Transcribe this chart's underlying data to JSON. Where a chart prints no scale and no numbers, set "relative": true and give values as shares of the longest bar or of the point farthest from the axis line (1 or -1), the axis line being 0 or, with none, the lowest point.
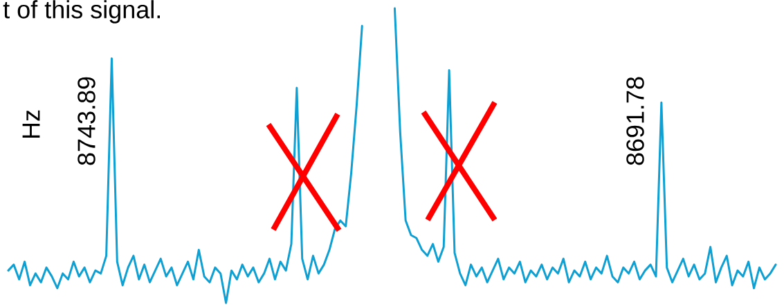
{
  "chart_data": {
    "type": "line",
    "relative": true,
    "line_style": "solid",
    "categories": [
      null,
      null,
      null,
      null,
      null,
      null,
      null,
      null,
      null,
      null,
      null,
      null,
      null,
      null,
      null,
      null,
      null,
      null,
      null,
      null,
      null,
      null,
      null,
      null,
      null,
      null,
      null,
      null,
      null,
      null,
      null,
      null,
      null,
      null,
      null,
      null,
      null,
      null,
      null,
      null,
      null,
      null,
      null,
      null,
      null,
      null,
      null,
      null,
      null,
      null,
      null,
      null,
      null,
      null,
      null,
      null,
      null,
      null,
      null,
      null,
      null,
      null,
      null,
      null,
      null,
      null,
      null,
      null,
      null,
      null,
      null,
      null,
      null,
      null,
      null,
      null,
      null,
      null,
      null,
      null,
      null,
      null,
      null,
      null,
      null,
      null,
      null,
      null,
      null,
      null,
      null,
      null,
      null,
      null,
      null,
      null,
      null,
      null,
      null,
      null,
      null,
      null,
      null,
      null,
      null,
      null,
      null,
      null,
      null,
      null,
      null,
      null,
      null,
      null,
      null,
      null,
      null,
      null,
      null,
      null,
      null,
      null,
      null,
      null,
      null,
      null,
      null,
      null,
      null,
      null,
      null,
      null,
      null,
      null,
      null,
      null,
      null,
      null,
      null,
      null,
      null,
      null
    ],
    "series": [
      {
        "color": "#0fa0d3",
        "values": [
          0.11,
          0.13,
          0.08,
          0.14,
          0.06,
          0.1,
          0.07,
          0.12,
          0.09,
          0.05,
          0.1,
          0.08,
          0.14,
          0.09,
          0.12,
          0.07,
          0.11,
          0.1,
          0.16,
          0.83,
          0.14,
          0.06,
          0.12,
          0.16,
          0.08,
          0.13,
          0.07,
          0.11,
          0.15,
          0.09,
          0.12,
          0.06,
          0.1,
          0.14,
          0.08,
          0.18,
          0.09,
          0.07,
          0.12,
          0.1,
          0.0,
          0.11,
          0.08,
          0.13,
          0.09,
          0.12,
          0.07,
          0.1,
          0.15,
          0.08,
          0.14,
          0.11,
          0.2,
          0.73,
          0.15,
          0.08,
          0.16,
          0.1,
          0.13,
          0.18,
          0.25,
          0.28,
          0.26,
          0.44,
          0.67,
          0.94,
          null,
          null,
          null,
          null,
          null,
          null,
          null,
          null,
          null,
          null,
          null,
          null,
          null,
          null,
          null,
          null,
          null,
          null,
          null,
          null,
          null,
          null,
          null,
          null,
          null,
          null,
          null,
          null,
          null,
          null,
          null,
          null,
          null,
          null,
          null,
          null,
          null,
          null,
          null,
          null,
          null,
          null,
          null,
          null,
          null,
          null,
          null,
          null,
          null,
          null,
          null,
          null,
          null,
          null,
          null,
          null,
          null,
          null,
          null,
          null,
          null,
          null,
          null,
          null,
          null,
          null,
          null,
          null,
          null,
          null,
          null,
          null,
          null,
          null,
          null,
          null
        ]
      },
      {
        "color": "#0fa0d3",
        "values": [
          null,
          null,
          null,
          null,
          null,
          null,
          null,
          null,
          null,
          null,
          null,
          null,
          null,
          null,
          null,
          null,
          null,
          null,
          null,
          null,
          null,
          null,
          null,
          null,
          null,
          null,
          null,
          null,
          null,
          null,
          null,
          null,
          null,
          null,
          null,
          null,
          null,
          null,
          null,
          null,
          null,
          null,
          null,
          null,
          null,
          null,
          null,
          null,
          null,
          null,
          null,
          null,
          null,
          null,
          null,
          null,
          null,
          null,
          null,
          null,
          null,
          null,
          null,
          null,
          null,
          null,
          null,
          null,
          null,
          null,
          null,
          1.0,
          0.58,
          0.28,
          0.23,
          0.22,
          0.18,
          0.16,
          0.2,
          0.14,
          0.19,
          0.79,
          0.17,
          0.1,
          0.06,
          0.13,
          0.09,
          0.12,
          0.07,
          0.11,
          0.15,
          0.08,
          0.12,
          0.1,
          0.14,
          0.07,
          0.11,
          0.09,
          0.13,
          0.08,
          0.12,
          0.1,
          0.15,
          0.07,
          0.11,
          0.09,
          0.14,
          0.08,
          0.12,
          0.1,
          0.16,
          0.09,
          0.07,
          0.12,
          0.1,
          0.14,
          0.08,
          0.11,
          0.13,
          0.09,
          0.68,
          0.12,
          0.07,
          0.11,
          0.15,
          0.09,
          0.13,
          0.08,
          0.1,
          0.19,
          0.07,
          0.12,
          0.16,
          0.06,
          0.11,
          0.09,
          0.14,
          0.05,
          0.12,
          0.08,
          0.1,
          0.13
        ]
      }
    ],
    "annotations": [
      "t of this signal.",
      "Hz",
      "8743.89",
      "8691.78"
    ]
  }
}
